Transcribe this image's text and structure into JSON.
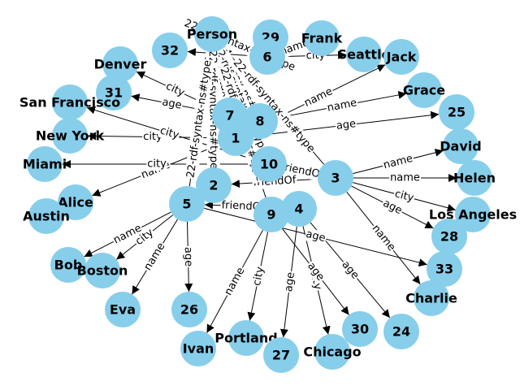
{
  "graph": {
    "nodes": [
      {
        "id": "Person",
        "label": "Person"
      },
      {
        "id": "29",
        "label": "29"
      },
      {
        "id": "Frank",
        "label": "Frank"
      },
      {
        "id": "32",
        "label": "32"
      },
      {
        "id": "6",
        "label": "6"
      },
      {
        "id": "Seattle",
        "label": "Seattle"
      },
      {
        "id": "Jack",
        "label": "Jack"
      },
      {
        "id": "Denver",
        "label": "Denver"
      },
      {
        "id": "31",
        "label": "31"
      },
      {
        "id": "Grace",
        "label": "Grace"
      },
      {
        "id": "25",
        "label": "25"
      },
      {
        "id": "San Francisco",
        "label": "San Francisco"
      },
      {
        "id": "7",
        "label": "7"
      },
      {
        "id": "8",
        "label": "8"
      },
      {
        "id": "1",
        "label": "1"
      },
      {
        "id": "New York",
        "label": "New York"
      },
      {
        "id": "David",
        "label": "David"
      },
      {
        "id": "Miami",
        "label": "Miami"
      },
      {
        "id": "10",
        "label": "10"
      },
      {
        "id": "3",
        "label": "3"
      },
      {
        "id": "Helen",
        "label": "Helen"
      },
      {
        "id": "2",
        "label": "2"
      },
      {
        "id": "Alice",
        "label": "Alice"
      },
      {
        "id": "5",
        "label": "5"
      },
      {
        "id": "4",
        "label": "4"
      },
      {
        "id": "9",
        "label": "9"
      },
      {
        "id": "Austin",
        "label": "Austin"
      },
      {
        "id": "Los Angeles",
        "label": "Los Angeles"
      },
      {
        "id": "28",
        "label": "28"
      },
      {
        "id": "Bob",
        "label": "Bob"
      },
      {
        "id": "Boston",
        "label": "Boston"
      },
      {
        "id": "33",
        "label": "33"
      },
      {
        "id": "Charlie",
        "label": "Charlie"
      },
      {
        "id": "Eva",
        "label": "Eva"
      },
      {
        "id": "26",
        "label": "26"
      },
      {
        "id": "30",
        "label": "30"
      },
      {
        "id": "24",
        "label": "24"
      },
      {
        "id": "Ivan",
        "label": "Ivan"
      },
      {
        "id": "Portland",
        "label": "Portland"
      },
      {
        "id": "27",
        "label": "27"
      },
      {
        "id": "Chicago",
        "label": "Chicago"
      }
    ],
    "edges": [
      {
        "source": "6",
        "target": "32",
        "label": "age"
      },
      {
        "source": "6",
        "target": "Frank",
        "label": "name"
      },
      {
        "source": "6",
        "target": "Seattle",
        "label": "city"
      },
      {
        "source": "6",
        "target": "Person",
        "label": "22-rdf-syntax-ns#type"
      },
      {
        "source": "7",
        "target": "Denver",
        "label": "city"
      },
      {
        "source": "7",
        "target": "31",
        "label": "age"
      },
      {
        "source": "7",
        "target": "Person",
        "label": "22-rdf-syntax-ns#type"
      },
      {
        "source": "8",
        "target": "Grace",
        "label": "name"
      },
      {
        "source": "8",
        "target": "Person",
        "label": "22-rdf-syntax-ns#type"
      },
      {
        "source": "1",
        "target": "Jack",
        "label": "name"
      },
      {
        "source": "1",
        "target": "25",
        "label": "age"
      },
      {
        "source": "1",
        "target": "New York",
        "label": "city"
      },
      {
        "source": "1",
        "target": "Alice",
        "label": "name"
      },
      {
        "source": "1",
        "target": "Person",
        "label": "22-rdf-syntax-ns#type"
      },
      {
        "source": "10",
        "target": "San Francisco",
        "label": "city"
      },
      {
        "source": "10",
        "target": "Miami",
        "label": "city"
      },
      {
        "source": "10",
        "target": "3",
        "label": "friendOf"
      },
      {
        "source": "10",
        "target": "Person",
        "label": "22-rdf-syntax-ns#type"
      },
      {
        "source": "3",
        "target": "2",
        "label": "friendOf"
      },
      {
        "source": "3",
        "target": "Helen",
        "label": "name"
      },
      {
        "source": "3",
        "target": "David",
        "label": "name"
      },
      {
        "source": "3",
        "target": "Los Angeles",
        "label": "city"
      },
      {
        "source": "3",
        "target": "28",
        "label": "age"
      },
      {
        "source": "3",
        "target": "Charlie",
        "label": "name"
      },
      {
        "source": "3",
        "target": "Person",
        "label": "22-rdf-syntax-ns#type"
      },
      {
        "source": "2",
        "target": "Person",
        "label": "22-rdf-syntax-ns#type"
      },
      {
        "source": "5",
        "target": "Bob",
        "label": "name"
      },
      {
        "source": "5",
        "target": "Boston",
        "label": "city"
      },
      {
        "source": "5",
        "target": "Eva",
        "label": "name"
      },
      {
        "source": "5",
        "target": "26",
        "label": "age"
      },
      {
        "source": "5",
        "target": "33",
        "label": "age"
      },
      {
        "source": "5",
        "target": "Person",
        "label": "22-rdf-syntax-ns#type"
      },
      {
        "source": "4",
        "target": "5",
        "label": "friendOf"
      },
      {
        "source": "4",
        "target": "24",
        "label": "age"
      },
      {
        "source": "4",
        "target": "27",
        "label": "age"
      },
      {
        "source": "4",
        "target": "Chicago",
        "label": "city"
      },
      {
        "source": "9",
        "target": "Ivan",
        "label": "name"
      },
      {
        "source": "9",
        "target": "Portland",
        "label": "city"
      },
      {
        "source": "9",
        "target": "30",
        "label": "age"
      },
      {
        "source": "9",
        "target": "Person",
        "label": "22-rdf-syntax-ns#type"
      }
    ]
  }
}
